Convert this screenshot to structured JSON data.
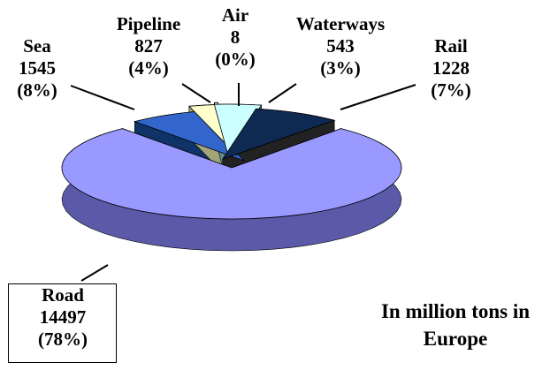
{
  "chart_data": {
    "type": "pie",
    "style": "3d-exploded",
    "note": [
      "In million tons in",
      "Europe"
    ],
    "slices": [
      {
        "name": "Road",
        "value": 14497,
        "percent_label": "(78%)",
        "color": "#9999ff",
        "side": "#5a5aa8"
      },
      {
        "name": "Sea",
        "value": 1545,
        "percent_label": "(8%)",
        "color": "#0f2a52",
        "side": "#222222"
      },
      {
        "name": "Pipeline",
        "value": 827,
        "percent_label": "(4%)",
        "color": "#ccffff",
        "side": "#5f8a88"
      },
      {
        "name": "Air",
        "value": 8,
        "percent_label": "(0%)",
        "color": "#ffffcc",
        "side": "#a3a37a"
      },
      {
        "name": "Waterways",
        "value": 543,
        "percent_label": "(3%)",
        "color": "#ffffcc",
        "side": "#a3a37a"
      },
      {
        "name": "Rail",
        "value": 1228,
        "percent_label": "(7%)",
        "color": "#3366cc",
        "side": "#0f3366"
      }
    ]
  }
}
